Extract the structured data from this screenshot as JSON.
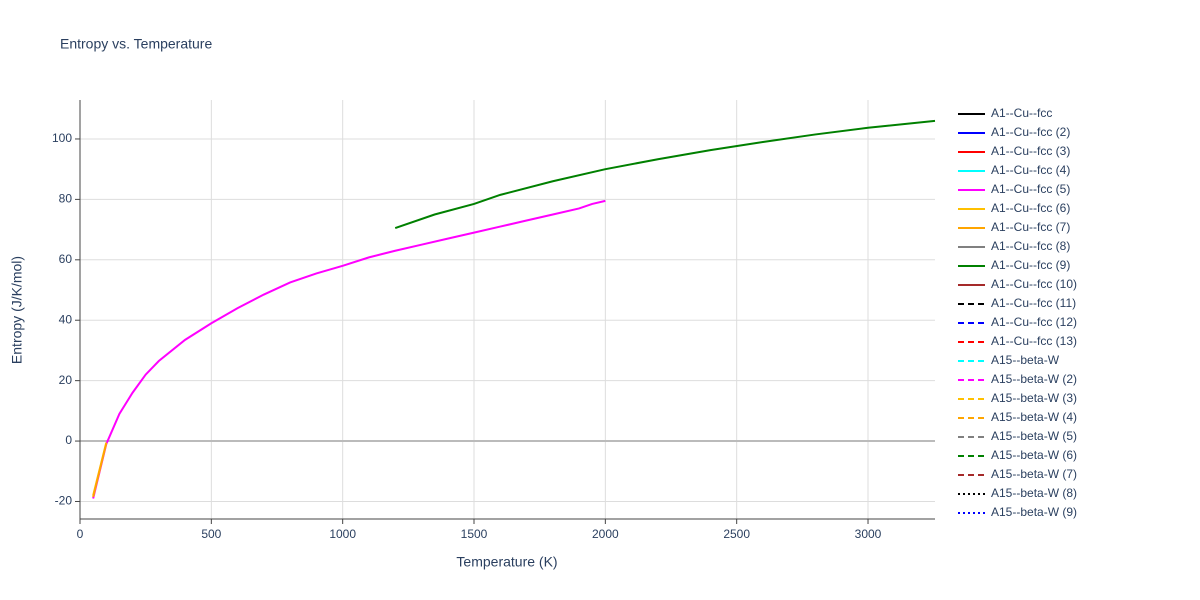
{
  "chart_data": {
    "type": "line",
    "title": "Entropy vs. Temperature",
    "x_label": "Temperature (K)",
    "y_label": "Entropy (J/K/mol)",
    "xlim": [
      0,
      3255
    ],
    "ylim": [
      -25.8,
      112.9
    ],
    "xticks": [
      0,
      500,
      1000,
      1500,
      2000,
      2500,
      3000
    ],
    "yticks": [
      -20,
      0,
      20,
      40,
      60,
      80,
      100
    ],
    "grid": true,
    "series": [
      {
        "name": "A1--Cu--fcc",
        "color": "#000000",
        "dash": "solid",
        "x": [],
        "values": []
      },
      {
        "name": "A1--Cu--fcc (2)",
        "color": "#0000ff",
        "dash": "solid",
        "x": [],
        "values": []
      },
      {
        "name": "A1--Cu--fcc (3)",
        "color": "#ff0000",
        "dash": "solid",
        "x": [],
        "values": []
      },
      {
        "name": "A1--Cu--fcc (4)",
        "color": "#00ffff",
        "dash": "solid",
        "x": [],
        "values": []
      },
      {
        "name": "A1--Cu--fcc (5)",
        "color": "#ff00ff",
        "dash": "solid",
        "x": [
          50,
          100,
          150,
          200,
          250,
          300,
          400,
          500,
          600,
          700,
          800,
          900,
          1000,
          1100,
          1200,
          1300,
          1400,
          1500,
          1600,
          1700,
          1800,
          1900,
          1950,
          2000
        ],
        "values": [
          -19,
          -1,
          9,
          16,
          22,
          26.5,
          33.5,
          39,
          44,
          48.5,
          52.5,
          55.5,
          58,
          60.8,
          63,
          65,
          67,
          69,
          71,
          73,
          75,
          77,
          78.5,
          79.5
        ]
      },
      {
        "name": "A1--Cu--fcc (6)",
        "color": "#ffc000",
        "dash": "solid",
        "x": [
          50,
          100
        ],
        "values": [
          -18,
          -0.5
        ]
      },
      {
        "name": "A1--Cu--fcc (7)",
        "color": "#ffa500",
        "dash": "solid",
        "x": [
          50,
          100
        ],
        "values": [
          -18.5,
          -0.8
        ]
      },
      {
        "name": "A1--Cu--fcc (8)",
        "color": "#808080",
        "dash": "solid",
        "x": [],
        "values": []
      },
      {
        "name": "A1--Cu--fcc (9)",
        "color": "#008000",
        "dash": "solid",
        "x": [
          1200,
          1350,
          1500,
          1600,
          1800,
          2000,
          2200,
          2400,
          2600,
          2800,
          3000,
          3255
        ],
        "values": [
          70.5,
          75,
          78.5,
          81.5,
          86,
          90,
          93.3,
          96.3,
          99,
          101.5,
          103.7,
          106
        ]
      },
      {
        "name": "A1--Cu--fcc (10)",
        "color": "#a52a2a",
        "dash": "solid",
        "x": [],
        "values": []
      },
      {
        "name": "A1--Cu--fcc (11)",
        "color": "#000000",
        "dash": "dash",
        "x": [],
        "values": []
      },
      {
        "name": "A1--Cu--fcc (12)",
        "color": "#0000ff",
        "dash": "dash",
        "x": [],
        "values": []
      },
      {
        "name": "A1--Cu--fcc (13)",
        "color": "#ff0000",
        "dash": "dash",
        "x": [],
        "values": []
      },
      {
        "name": "A15--beta-W",
        "color": "#00ffff",
        "dash": "dash",
        "x": [],
        "values": []
      },
      {
        "name": "A15--beta-W (2)",
        "color": "#ff00ff",
        "dash": "dash",
        "x": [],
        "values": []
      },
      {
        "name": "A15--beta-W (3)",
        "color": "#ffc000",
        "dash": "dash",
        "x": [],
        "values": []
      },
      {
        "name": "A15--beta-W (4)",
        "color": "#ffa500",
        "dash": "dash",
        "x": [],
        "values": []
      },
      {
        "name": "A15--beta-W (5)",
        "color": "#808080",
        "dash": "dash",
        "x": [],
        "values": []
      },
      {
        "name": "A15--beta-W (6)",
        "color": "#008000",
        "dash": "dash",
        "x": [],
        "values": []
      },
      {
        "name": "A15--beta-W (7)",
        "color": "#a52a2a",
        "dash": "dash",
        "x": [],
        "values": []
      },
      {
        "name": "A15--beta-W (8)",
        "color": "#000000",
        "dash": "dot",
        "x": [],
        "values": []
      },
      {
        "name": "A15--beta-W (9)",
        "color": "#0000ff",
        "dash": "dot",
        "x": [],
        "values": []
      }
    ]
  }
}
